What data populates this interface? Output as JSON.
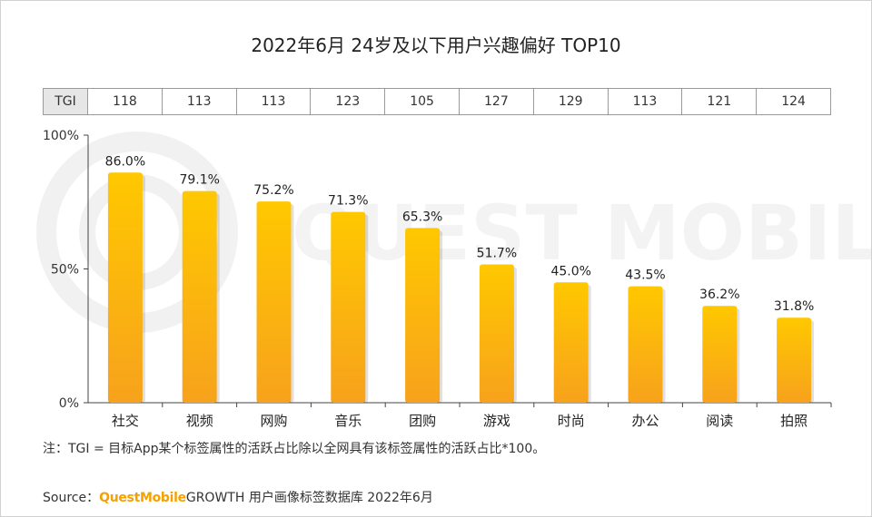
{
  "title": "2022年6月 24岁及以下用户兴趣偏好 TOP10",
  "tgi": {
    "header": "TGI",
    "values": [
      "118",
      "113",
      "113",
      "123",
      "105",
      "127",
      "129",
      "113",
      "121",
      "124"
    ]
  },
  "watermark": "QUEST MOBILE",
  "note": "注：TGI = 目标App某个标签属性的活跃占比除以全网具有该标签属性的活跃占比*100。",
  "source": {
    "prefix": "Source：",
    "brand": "QuestMobile",
    "rest": "GROWTH 用户画像标签数据库 2022年6月"
  },
  "colors": {
    "bar_top": "#ffc800",
    "bar_bottom": "#f7a21c",
    "axis": "#444444",
    "brand": "#f5a100"
  },
  "chart_data": {
    "type": "bar",
    "categories": [
      "社交",
      "视频",
      "网购",
      "音乐",
      "团购",
      "游戏",
      "时尚",
      "办公",
      "阅读",
      "拍照"
    ],
    "values": [
      86.0,
      79.1,
      75.2,
      71.3,
      65.3,
      51.7,
      45.0,
      43.5,
      36.2,
      31.8
    ],
    "data_labels": [
      "86.0%",
      "79.1%",
      "75.2%",
      "71.3%",
      "65.3%",
      "51.7%",
      "45.0%",
      "43.5%",
      "36.2%",
      "31.8%"
    ],
    "ylim": [
      0,
      100
    ],
    "yticks": [
      0,
      50,
      100
    ],
    "ytick_labels": [
      "0%",
      "50%",
      "100%"
    ],
    "grid": false,
    "legend": "none"
  }
}
